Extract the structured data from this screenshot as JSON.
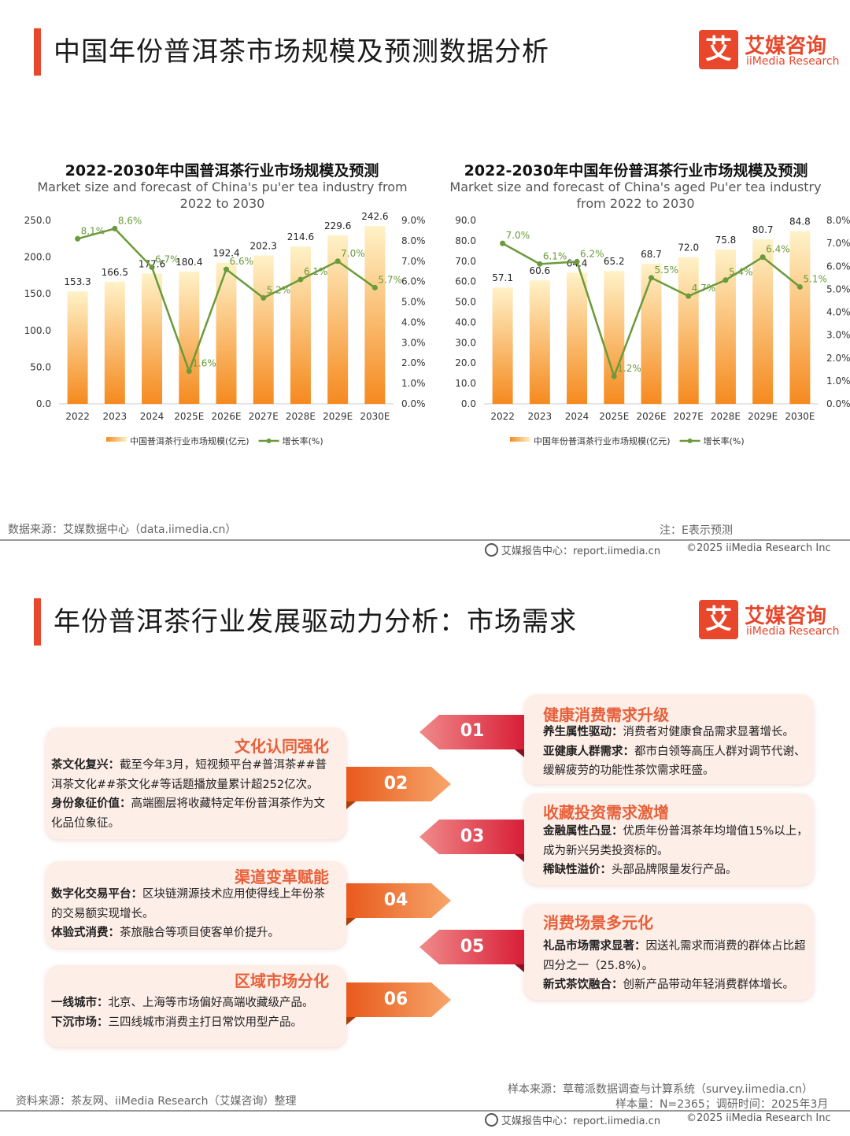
{
  "slide1": {
    "title": "中国年份普洱茶市场规模及预测数据分析",
    "source": "数据来源：艾媒数据中心（data.iimedia.cn）",
    "note": "注：E表示预测",
    "footer_center": "艾媒报告中心：report.iimedia.cn",
    "footer_right": "©2025  iiMedia Research  Inc"
  },
  "logo": {
    "box": "艾",
    "cn": "艾媒咨询",
    "en": "iiMedia Research"
  },
  "colors": {
    "accent": "#e8472b",
    "line": "#6a9a3a",
    "bar_top": "#fff2c8",
    "bar_bottom": "#f58a1f"
  },
  "chart_data": [
    {
      "type": "bar",
      "title": "2022-2030年中国普洱茶行业市场规模及预测",
      "subtitle": "Market size and forecast of China's pu'er tea industry from 2022 to 2030",
      "categories": [
        "2022",
        "2023",
        "2024",
        "2025E",
        "2026E",
        "2027E",
        "2028E",
        "2029E",
        "2030E"
      ],
      "series": [
        {
          "name": "中国普洱茶行业市场规模(亿元)",
          "values": [
            153.3,
            166.5,
            177.6,
            180.4,
            192.4,
            202.3,
            214.6,
            229.6,
            242.6
          ],
          "axis": "left"
        },
        {
          "name": "增长率(%)",
          "values": [
            8.1,
            8.6,
            6.7,
            1.6,
            6.6,
            5.2,
            6.1,
            7.0,
            5.7
          ],
          "axis": "right",
          "type": "line"
        }
      ],
      "ylim": [
        0,
        250
      ],
      "y_ticks": [
        "0.0",
        "50.0",
        "100.0",
        "150.0",
        "200.0",
        "250.0"
      ],
      "y2lim": [
        0,
        9
      ],
      "y2_ticks": [
        "0.0%",
        "1.0%",
        "2.0%",
        "3.0%",
        "4.0%",
        "5.0%",
        "6.0%",
        "7.0%",
        "8.0%",
        "9.0%"
      ],
      "bar_labels": [
        "153.3",
        "166.5",
        "177.6",
        "180.4",
        "192.4",
        "202.3",
        "214.6",
        "229.6",
        "242.6"
      ],
      "line_labels": [
        "8.1%",
        "8.6%",
        "6.7%",
        "1.6%",
        "6.6%",
        "5.2%",
        "6.1%",
        "7.0%",
        "5.7%"
      ],
      "legend": "bottom"
    },
    {
      "type": "bar",
      "title": "2022-2030年中国年份普洱茶行业市场规模及预测",
      "subtitle": "Market size and forecast of China's aged Pu'er tea industry from 2022 to 2030",
      "categories": [
        "2022",
        "2023",
        "2024",
        "2025E",
        "2026E",
        "2027E",
        "2028E",
        "2029E",
        "2030E"
      ],
      "series": [
        {
          "name": "中国年份普洱茶行业市场规模(亿元)",
          "values": [
            57.1,
            60.6,
            64.4,
            65.2,
            68.7,
            72.0,
            75.8,
            80.7,
            84.8
          ],
          "axis": "left"
        },
        {
          "name": "增长率(%)",
          "values": [
            7.0,
            6.1,
            6.2,
            1.2,
            5.5,
            4.7,
            5.4,
            6.4,
            5.1
          ],
          "axis": "right",
          "type": "line"
        }
      ],
      "ylim": [
        0,
        90
      ],
      "y_ticks": [
        "0.0",
        "10.0",
        "20.0",
        "30.0",
        "40.0",
        "50.0",
        "60.0",
        "70.0",
        "80.0",
        "90.0"
      ],
      "y2lim": [
        0,
        8
      ],
      "y2_ticks": [
        "0.0%",
        "1.0%",
        "2.0%",
        "3.0%",
        "4.0%",
        "5.0%",
        "6.0%",
        "7.0%",
        "8.0%"
      ],
      "bar_labels": [
        "57.1",
        "60.6",
        "64.4",
        "65.2",
        "68.7",
        "72.0",
        "75.8",
        "80.7",
        "84.8"
      ],
      "line_labels": [
        "7.0%",
        "6.1%",
        "6.2%",
        "1.2%",
        "5.5%",
        "4.7%",
        "5.4%",
        "6.4%",
        "5.1%"
      ],
      "legend": "bottom"
    }
  ],
  "slide2": {
    "title": "年份普洱茶行业发展驱动力分析：市场需求",
    "numbers": [
      "01",
      "02",
      "03",
      "04",
      "05",
      "06"
    ],
    "left_cards": [
      {
        "title": "文化认同强化",
        "lines": [
          {
            "k": "茶文化复兴：",
            "v": "截至今年3月，短视频平台#普洱茶##普洱茶文化##茶文化#等话题播放量累计超252亿次。"
          },
          {
            "k": "身份象征价值：",
            "v": "高端圈层将收藏特定年份普洱茶作为文化品位象征。"
          }
        ]
      },
      {
        "title": "渠道变革赋能",
        "lines": [
          {
            "k": "数字化交易平台：",
            "v": "区块链溯源技术应用使得线上年份茶的交易额实现增长。"
          },
          {
            "k": "体验式消费：",
            "v": "茶旅融合等项目使客单价提升。"
          }
        ]
      },
      {
        "title": "区域市场分化",
        "lines": [
          {
            "k": "一线城市：",
            "v": "北京、上海等市场偏好高端收藏级产品。"
          },
          {
            "k": "下沉市场：",
            "v": "三四线城市消费主打日常饮用型产品。"
          }
        ]
      }
    ],
    "right_cards": [
      {
        "title": "健康消费需求升级",
        "lines": [
          {
            "k": "养生属性驱动：",
            "v": "消费者对健康食品需求显著增长。"
          },
          {
            "k": "亚健康人群需求：",
            "v": "都市白领等高压人群对调节代谢、缓解疲劳的功能性茶饮需求旺盛。"
          }
        ]
      },
      {
        "title": "收藏投资需求激增",
        "lines": [
          {
            "k": "金融属性凸显：",
            "v": "优质年份普洱茶年均增值15%以上，成为新兴另类投资标的。"
          },
          {
            "k": "稀缺性溢价：",
            "v": "头部品牌限量发行产品。"
          }
        ]
      },
      {
        "title": "消费场景多元化",
        "lines": [
          {
            "k": "礼品市场需求显著：",
            "v": "因送礼需求而消费的群体占比超四分之一（25.8%）。"
          },
          {
            "k": "新式茶饮融合：",
            "v": "创新产品带动年轻消费群体增长。"
          }
        ]
      }
    ],
    "source": "资料来源：茶友网、iiMedia Research（艾媒咨询）整理",
    "sample_source": "样本来源：草莓派数据调查与计算系统（survey.iimedia.cn）",
    "sample_size": "样本量：N=2365；调研时间：2025年3月",
    "footer_center": "艾媒报告中心：report.iimedia.cn",
    "footer_right": "©2025  iiMedia Research  Inc"
  }
}
